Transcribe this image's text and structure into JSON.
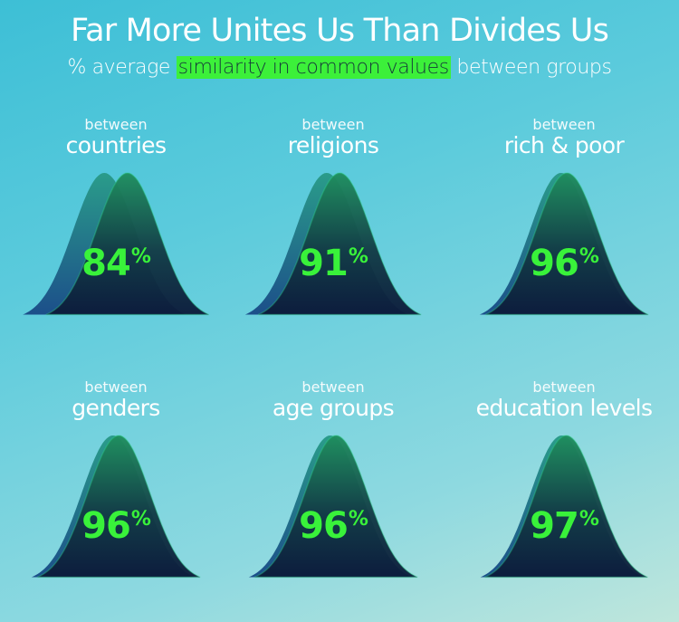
{
  "title": "Far More Unites Us Than Divides Us",
  "subtitle": {
    "prefix": "% average",
    "highlight": "similarity in common values",
    "suffix": "between groups"
  },
  "colors": {
    "accent_green": "#39f23a",
    "highlight_bg": "#3cf03a",
    "curve_front": "#0f2a44",
    "curve_back": "#1f6e86"
  },
  "chart_data": {
    "type": "bar",
    "title": "Far More Unites Us Than Divides Us",
    "subtitle": "% average similarity in common values between groups",
    "categories": [
      "countries",
      "religions",
      "rich & poor",
      "genders",
      "age groups",
      "education levels"
    ],
    "values": [
      84,
      91,
      96,
      96,
      96,
      97
    ],
    "unit": "%",
    "panels": [
      {
        "prefix": "between",
        "label": "countries",
        "value": 84
      },
      {
        "prefix": "between",
        "label": "religions",
        "value": 91
      },
      {
        "prefix": "between",
        "label": "rich & poor",
        "value": 96
      },
      {
        "prefix": "between",
        "label": "genders",
        "value": 96
      },
      {
        "prefix": "between",
        "label": "age groups",
        "value": 96
      },
      {
        "prefix": "between",
        "label": "education levels",
        "value": 97
      }
    ]
  }
}
